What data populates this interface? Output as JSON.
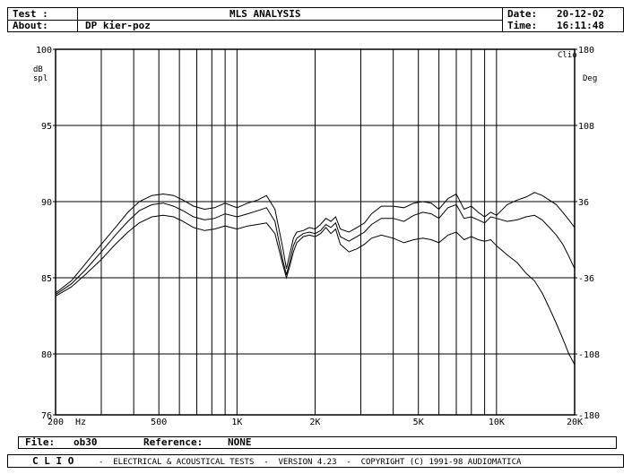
{
  "header": {
    "test_label": "Test :",
    "about_label": "About:",
    "about_value": "DP kier-poz",
    "title": "MLS ANALYSIS",
    "date_label": "Date:",
    "date_value": "20-12-02",
    "time_label": "Time:",
    "time_value": "16:11:48"
  },
  "info_bar": {
    "file_label": "File:",
    "file_value": "ob30",
    "reference_label": "Reference:",
    "reference_value": "NONE"
  },
  "footer": {
    "brand": "C L I O",
    "text": "-  ELECTRICAL & ACOUSTICAL TESTS  -  VERSION 4.23  -  COPYRIGHT (C) 1991-98 AUDIOMATICA"
  },
  "chart_data": {
    "type": "line",
    "x_scale": "log",
    "xlim": [
      200,
      20000
    ],
    "ylim": [
      76,
      100
    ],
    "y2lim": [
      -180,
      180
    ],
    "y_ticks": [
      "100",
      "95",
      "90",
      "85",
      "80",
      "76"
    ],
    "y2_ticks": [
      "180",
      "108",
      "36",
      "-36",
      "-108",
      "-180"
    ],
    "x_ticks": [
      {
        "value": 200,
        "label": "200"
      },
      {
        "value": 250,
        "label": "Hz"
      },
      {
        "value": 500,
        "label": "500"
      },
      {
        "value": 1000,
        "label": "1K"
      },
      {
        "value": 2000,
        "label": "2K"
      },
      {
        "value": 5000,
        "label": "5K"
      },
      {
        "value": 10000,
        "label": "10K"
      },
      {
        "value": 20000,
        "label": "20K"
      }
    ],
    "ylabel": "dB spl",
    "y2label": "Deg",
    "clip_label": "Clio",
    "grid": true,
    "series": [
      {
        "x": [
          200,
          230,
          260,
          300,
          340,
          380,
          420,
          470,
          520,
          570,
          620,
          680,
          750,
          820,
          900,
          1000,
          1100,
          1200,
          1300,
          1400,
          1500,
          1550,
          1600,
          1650,
          1700,
          1800,
          1900,
          2000,
          2100,
          2200,
          2300,
          2400,
          2500,
          2700,
          2900,
          3100,
          3300,
          3600,
          4000,
          4400,
          4800,
          5200,
          5600,
          6000,
          6500,
          7000,
          7500,
          8000,
          8500,
          9000,
          9500,
          10000,
          11000,
          12000,
          13000,
          14000,
          15000,
          16000,
          17000,
          18000,
          19000,
          20000
        ],
        "values": [
          84.0,
          84.8,
          85.9,
          87.2,
          88.3,
          89.3,
          90.0,
          90.4,
          90.5,
          90.4,
          90.1,
          89.7,
          89.5,
          89.6,
          89.9,
          89.6,
          89.9,
          90.1,
          90.4,
          89.5,
          87.0,
          85.6,
          86.6,
          87.6,
          88.0,
          88.1,
          88.3,
          88.2,
          88.5,
          88.9,
          88.7,
          89.0,
          88.2,
          88.0,
          88.3,
          88.6,
          89.2,
          89.7,
          89.7,
          89.6,
          89.9,
          90.0,
          89.9,
          89.5,
          90.2,
          90.5,
          89.5,
          89.7,
          89.3,
          89.0,
          89.3,
          89.1,
          89.8,
          90.1,
          90.3,
          90.6,
          90.4,
          90.1,
          89.8,
          89.3,
          88.8,
          88.3
        ]
      },
      {
        "x": [
          200,
          230,
          260,
          300,
          340,
          380,
          420,
          470,
          520,
          570,
          620,
          680,
          750,
          820,
          900,
          1000,
          1100,
          1200,
          1300,
          1400,
          1500,
          1550,
          1600,
          1650,
          1700,
          1800,
          1900,
          2000,
          2100,
          2200,
          2300,
          2400,
          2500,
          2700,
          2900,
          3100,
          3300,
          3600,
          4000,
          4400,
          4800,
          5200,
          5600,
          6000,
          6500,
          7000,
          7500,
          8000,
          8500,
          9000,
          9500,
          10000,
          11000,
          12000,
          13000,
          14000,
          15000,
          16000,
          17000,
          18000,
          19000,
          20000
        ],
        "values": [
          83.9,
          84.6,
          85.5,
          86.7,
          87.8,
          88.7,
          89.4,
          89.8,
          89.9,
          89.7,
          89.4,
          89.0,
          88.8,
          88.9,
          89.2,
          89.0,
          89.2,
          89.4,
          89.6,
          88.7,
          86.2,
          85.2,
          86.1,
          87.1,
          87.6,
          87.9,
          88.0,
          87.9,
          88.1,
          88.5,
          88.3,
          88.6,
          87.7,
          87.4,
          87.7,
          88.0,
          88.5,
          88.9,
          88.9,
          88.7,
          89.1,
          89.3,
          89.2,
          88.9,
          89.6,
          89.8,
          88.9,
          89.0,
          88.8,
          88.6,
          89.0,
          88.9,
          88.7,
          88.8,
          89.0,
          89.1,
          88.8,
          88.3,
          87.8,
          87.2,
          86.4,
          85.6
        ]
      },
      {
        "x": [
          200,
          230,
          260,
          300,
          340,
          380,
          420,
          470,
          520,
          570,
          620,
          680,
          750,
          820,
          900,
          1000,
          1100,
          1200,
          1300,
          1400,
          1500,
          1550,
          1600,
          1650,
          1700,
          1800,
          1900,
          2000,
          2100,
          2200,
          2300,
          2400,
          2500,
          2700,
          2900,
          3100,
          3300,
          3600,
          4000,
          4400,
          4800,
          5200,
          5600,
          6000,
          6500,
          7000,
          7500,
          8000,
          8500,
          9000,
          9500,
          10000,
          11000,
          12000,
          13000,
          14000,
          15000,
          16000,
          17000,
          18000,
          19000,
          20000
        ],
        "values": [
          83.8,
          84.4,
          85.2,
          86.2,
          87.2,
          88.0,
          88.6,
          89.0,
          89.1,
          89.0,
          88.7,
          88.3,
          88.1,
          88.2,
          88.4,
          88.2,
          88.4,
          88.5,
          88.6,
          87.9,
          85.9,
          85.0,
          85.8,
          86.7,
          87.3,
          87.7,
          87.8,
          87.7,
          87.9,
          88.3,
          87.9,
          88.2,
          87.2,
          86.7,
          86.9,
          87.2,
          87.6,
          87.8,
          87.6,
          87.3,
          87.5,
          87.6,
          87.5,
          87.3,
          87.8,
          88.0,
          87.5,
          87.7,
          87.5,
          87.4,
          87.5,
          87.1,
          86.5,
          86.0,
          85.3,
          84.8,
          84.0,
          83.0,
          82.0,
          81.0,
          80.0,
          79.3
        ]
      }
    ]
  }
}
